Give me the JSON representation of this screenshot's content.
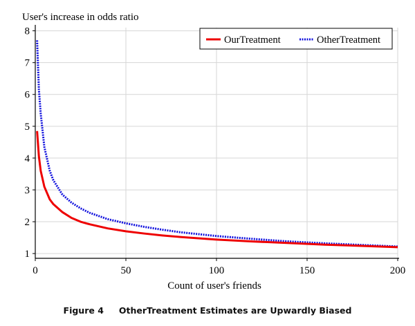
{
  "chart_data": {
    "type": "line",
    "ylabel": "User's increase in odds ratio",
    "xlabel": "Count of user's friends",
    "xlim": [
      0,
      200
    ],
    "ylim": [
      0.85,
      8.1
    ],
    "x_ticks": [
      "0",
      "50",
      "100",
      "150",
      "200"
    ],
    "y_ticks": [
      "1",
      "2",
      "3",
      "4",
      "5",
      "6",
      "7",
      "8"
    ],
    "grid": true,
    "legend_position": "top-right",
    "series": [
      {
        "name": "OurTreatment",
        "color": "#ee0000",
        "style": "solid",
        "x": [
          1,
          2,
          3,
          5,
          8,
          10,
          15,
          20,
          25,
          30,
          40,
          50,
          60,
          70,
          80,
          90,
          100,
          120,
          140,
          160,
          180,
          200
        ],
        "values": [
          4.85,
          4.05,
          3.6,
          3.1,
          2.7,
          2.55,
          2.3,
          2.12,
          2.0,
          1.92,
          1.79,
          1.7,
          1.63,
          1.57,
          1.52,
          1.48,
          1.44,
          1.38,
          1.33,
          1.28,
          1.24,
          1.2
        ]
      },
      {
        "name": "OtherTreatment",
        "color": "#1010dd",
        "style": "dotted",
        "x": [
          1,
          2,
          3,
          5,
          8,
          10,
          15,
          20,
          25,
          30,
          40,
          50,
          60,
          70,
          80,
          90,
          100,
          120,
          140,
          160,
          180,
          200
        ],
        "values": [
          7.7,
          6.15,
          5.4,
          4.35,
          3.6,
          3.3,
          2.85,
          2.6,
          2.42,
          2.28,
          2.08,
          1.95,
          1.84,
          1.75,
          1.67,
          1.61,
          1.55,
          1.46,
          1.38,
          1.32,
          1.27,
          1.22
        ]
      }
    ]
  },
  "caption": {
    "figure": "Figure 4",
    "text": "OtherTreatment Estimates are Upwardly Biased"
  }
}
